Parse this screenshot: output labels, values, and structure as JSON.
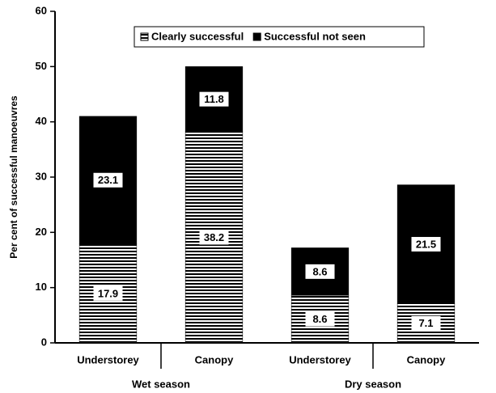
{
  "chart_data": {
    "type": "stacked_bar",
    "ylabel": "Per cent of successful manoeuvres",
    "categories": [
      "Understorey",
      "Canopy",
      "Understorey",
      "Canopy"
    ],
    "groups": [
      "Wet season",
      "Dry season"
    ],
    "series": [
      {
        "name": "Clearly successful",
        "color": "#000000",
        "pattern": "horizontal-lines",
        "values": [
          17.9,
          38.2,
          8.6,
          7.1
        ]
      },
      {
        "name": "Successful not seen",
        "color": "#000000",
        "values": [
          23.1,
          11.8,
          8.6,
          21.5
        ]
      }
    ],
    "ylim": [
      0,
      60
    ],
    "yticks": [
      0,
      10,
      20,
      30,
      40,
      50,
      60
    ],
    "legend": "top"
  }
}
